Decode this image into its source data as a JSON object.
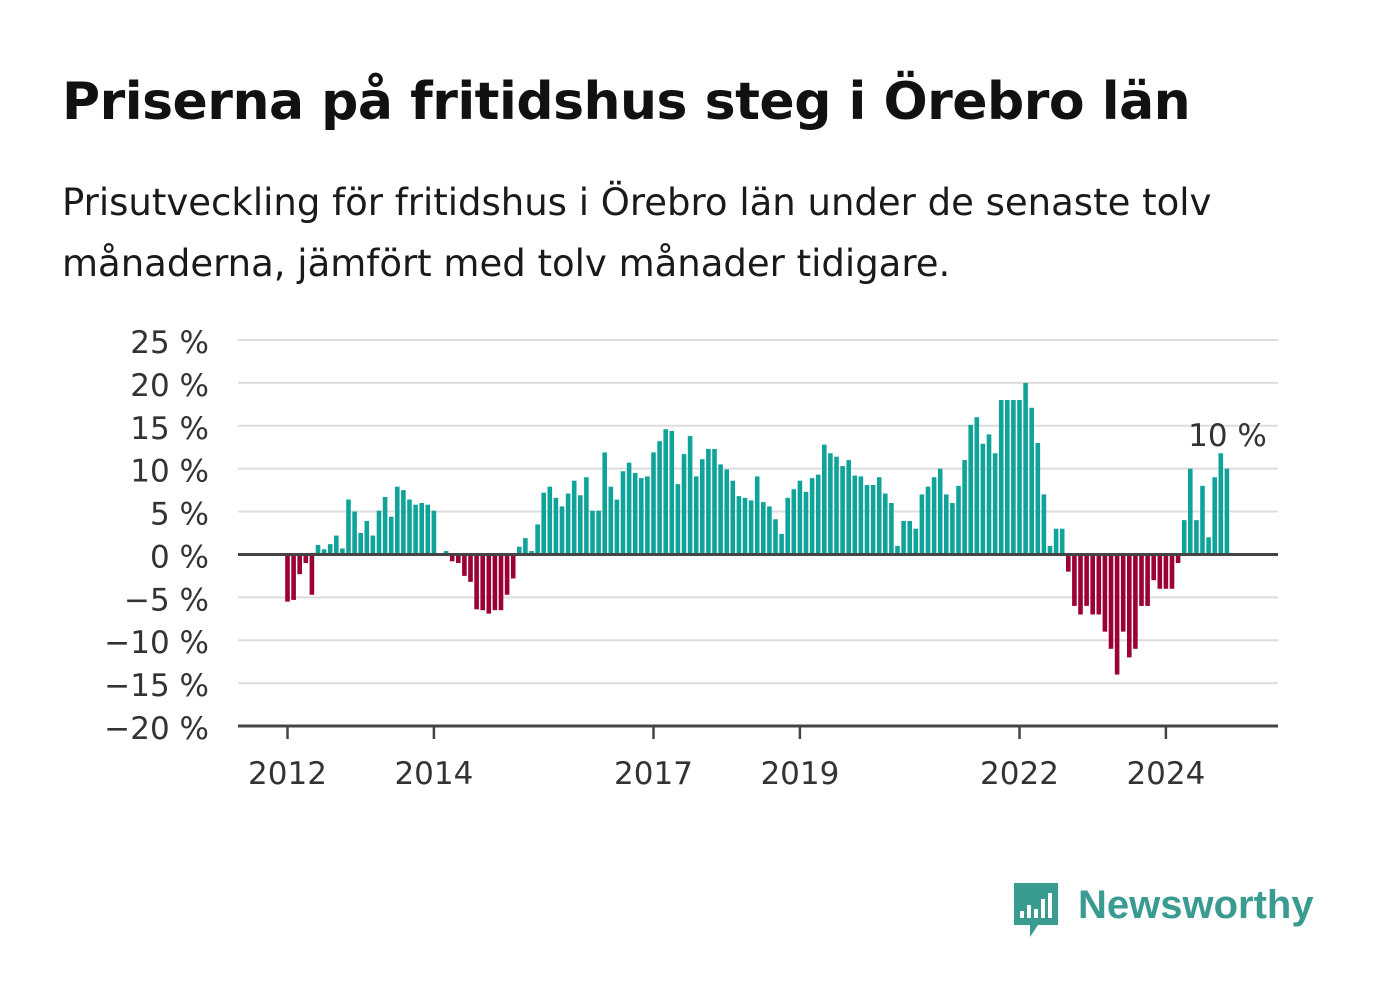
{
  "title": "Priserna på fritidshus steg i Örebro län",
  "subtitle": "Prisutveckling för fritidshus i Örebro län under de senaste tolv månaderna, jämfört med tolv månader tidigare.",
  "brand": {
    "name": "Newsworthy",
    "icon": "newsworthy-bar-chart-icon",
    "color": "#3a9b90"
  },
  "chart_data": {
    "type": "bar",
    "title": "Priserna på fritidshus steg i Örebro län",
    "xlabel": "",
    "ylabel": "",
    "ylim": [
      -20,
      25
    ],
    "yticks": [
      25,
      20,
      15,
      10,
      5,
      0,
      -5,
      -10,
      -15,
      -20
    ],
    "ytick_labels": [
      "25 %",
      "20 %",
      "15 %",
      "10 %",
      "5 %",
      "0 %",
      "−5 %",
      "−10 %",
      "−15 %",
      "−20 %"
    ],
    "xticks": [
      "2012",
      "2014",
      "2017",
      "2019",
      "2022",
      "2024"
    ],
    "grid": true,
    "colors": {
      "positive": "#0fa39a",
      "negative": "#9b0036",
      "grid": "#dddddd",
      "axis": "#444444"
    },
    "annotation": {
      "label": "10 %",
      "target": "last"
    },
    "start": "2012-01",
    "frequency": "monthly",
    "values": [
      -5.5,
      -5.3,
      -2.3,
      -1.0,
      -4.7,
      1.1,
      0.6,
      1.2,
      2.2,
      0.7,
      6.4,
      5.0,
      2.5,
      3.9,
      2.2,
      5.1,
      6.7,
      4.4,
      7.9,
      7.5,
      6.4,
      5.8,
      6.0,
      5.8,
      5.1,
      0.0,
      0.4,
      -0.8,
      -1.0,
      -2.5,
      -3.2,
      -6.4,
      -6.5,
      -6.9,
      -6.5,
      -6.5,
      -4.7,
      -2.8,
      0.9,
      1.9,
      0.4,
      3.5,
      7.2,
      7.9,
      6.6,
      5.6,
      7.1,
      8.6,
      6.9,
      9.0,
      5.1,
      5.1,
      11.9,
      7.9,
      6.4,
      9.7,
      10.7,
      9.5,
      8.9,
      9.1,
      11.9,
      13.2,
      14.6,
      14.4,
      8.2,
      11.7,
      13.8,
      9.1,
      11.1,
      12.3,
      12.3,
      10.5,
      9.9,
      8.6,
      6.8,
      6.6,
      6.3,
      9.1,
      6.1,
      5.6,
      4.1,
      2.4,
      6.6,
      7.6,
      8.6,
      7.3,
      8.9,
      9.3,
      12.8,
      11.8,
      11.4,
      10.3,
      11.0,
      9.2,
      9.1,
      8.1,
      8.1,
      9.0,
      7.1,
      6.0,
      1.0,
      3.9,
      3.9,
      3.0,
      7.0,
      7.9,
      9.0,
      10.0,
      7.0,
      6.0,
      8.0,
      11.0,
      15.1,
      16.0,
      12.9,
      14.0,
      11.8,
      18.0,
      18.0,
      18.0,
      18.0,
      20.0,
      17.1,
      13.0,
      7.0,
      1.0,
      3.0,
      3.0,
      -2.0,
      -6.0,
      -7.0,
      -6.0,
      -7.0,
      -7.0,
      -9.0,
      -11.0,
      -14.0,
      -9.0,
      -12.0,
      -11.0,
      -6.0,
      -6.0,
      -3.0,
      -4.0,
      -4.0,
      -4.0,
      -1.0,
      4.0,
      10.0,
      4.0,
      8.0,
      2.0,
      9.0,
      11.8,
      10.0
    ]
  }
}
